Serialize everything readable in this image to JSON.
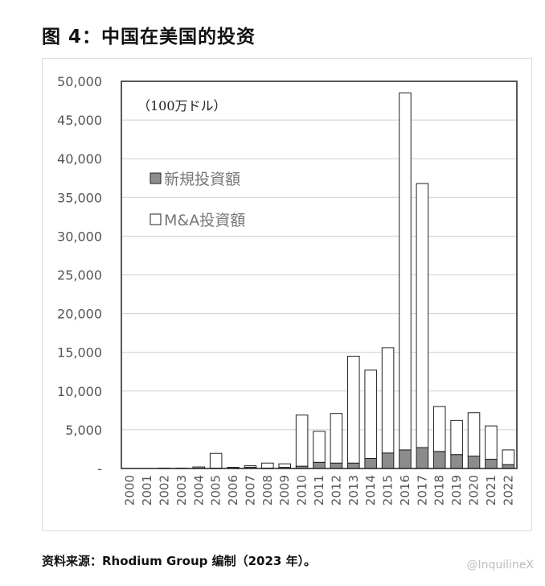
{
  "figure": {
    "title": "图 4：中国在美国的投资",
    "source": "资料来源：Rhodium Group 编制（2023 年）。",
    "watermark": "@InquilineX"
  },
  "colors": {
    "greenfield": "#8c8c8c",
    "mna": "#ffffff",
    "outline": "#222222",
    "gridline": "#cfcfcf"
  },
  "chart_data": {
    "type": "bar",
    "stacked": true,
    "unit_label": "（100万ドル）",
    "categories": [
      "2000",
      "2001",
      "2002",
      "2003",
      "2004",
      "2005",
      "2006",
      "2007",
      "2008",
      "2009",
      "2010",
      "2011",
      "2012",
      "2013",
      "2014",
      "2015",
      "2016",
      "2017",
      "2018",
      "2019",
      "2020",
      "2021",
      "2022"
    ],
    "series": [
      {
        "name": "新規投資額",
        "values": [
          0,
          0,
          0,
          0,
          50,
          50,
          50,
          150,
          50,
          150,
          300,
          800,
          700,
          700,
          1300,
          2000,
          2400,
          2700,
          2200,
          1800,
          1600,
          1200,
          500
        ]
      },
      {
        "name": "M&A投資額",
        "values": [
          0,
          0,
          50,
          50,
          150,
          1900,
          100,
          200,
          650,
          450,
          6600,
          4000,
          6400,
          13800,
          11400,
          13600,
          46100,
          34100,
          5800,
          4400,
          5600,
          4300,
          1900
        ]
      }
    ],
    "ylim": [
      0,
      50000
    ],
    "yticks": [
      0,
      5000,
      10000,
      15000,
      20000,
      25000,
      30000,
      35000,
      40000,
      45000,
      50000
    ],
    "ytick_labels": [
      "-",
      "5,000",
      "10,000",
      "15,000",
      "20,000",
      "25,000",
      "30,000",
      "35,000",
      "40,000",
      "45,000",
      "50,000"
    ],
    "grid": true,
    "legend_position": "top-left"
  }
}
